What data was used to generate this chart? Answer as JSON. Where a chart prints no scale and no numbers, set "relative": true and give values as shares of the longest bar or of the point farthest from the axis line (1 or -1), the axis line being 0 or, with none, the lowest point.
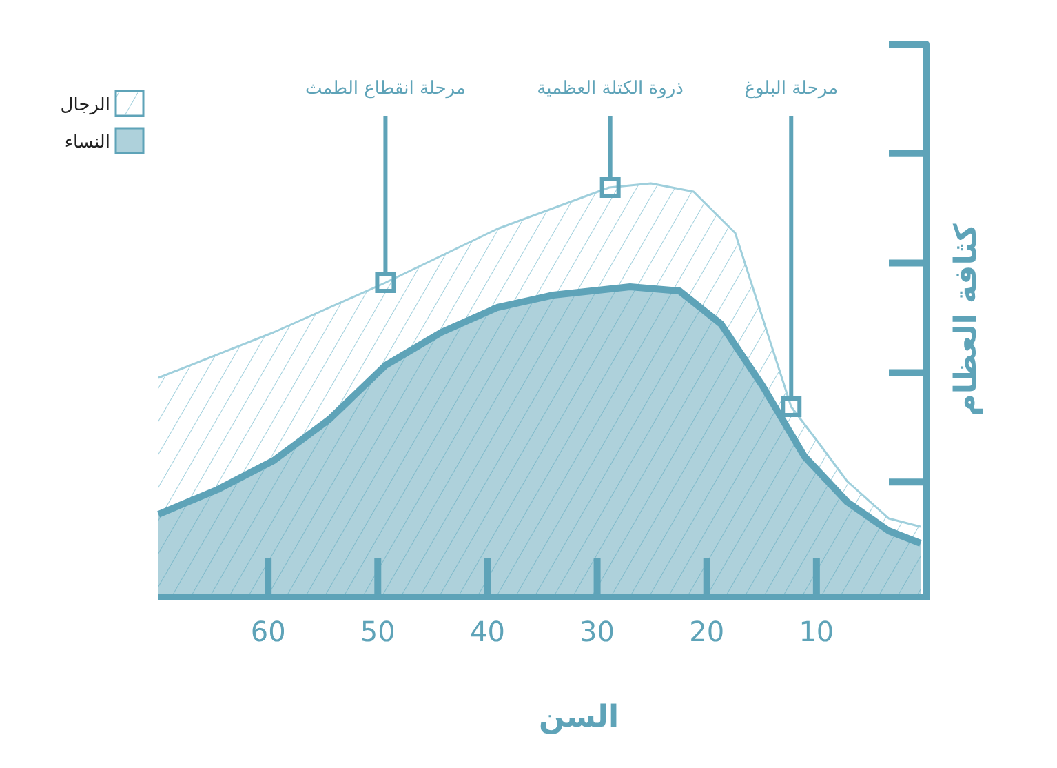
{
  "chart_data": {
    "type": "area",
    "relative": true,
    "xlabel": "السن",
    "ylabel": "كثافة العظام",
    "xlim": [
      70,
      0
    ],
    "xticks": [
      60,
      50,
      40,
      30,
      20,
      10
    ],
    "legend": "top left",
    "series": [
      {
        "name": "الرجال",
        "color": "#9fcfdc",
        "x": [
          70,
          59.5,
          49.3,
          39.1,
          28.9,
          25.1,
          21.2,
          17.4,
          12.3,
          10,
          7.2,
          3.4,
          0.5
        ],
        "values": [
          0.53,
          0.64,
          0.76,
          0.89,
          0.99,
          1.0,
          0.98,
          0.88,
          0.46,
          0.38,
          0.28,
          0.19,
          0.17
        ]
      },
      {
        "name": "النساء",
        "color": "#5ea3b8",
        "x": [
          70,
          64.6,
          59.5,
          54.4,
          49.3,
          44.2,
          39.1,
          34.0,
          27.0,
          22.5,
          18.7,
          14.9,
          11.1,
          7.2,
          3.4,
          0.5
        ],
        "values": [
          0.2,
          0.26,
          0.33,
          0.43,
          0.56,
          0.64,
          0.7,
          0.73,
          0.75,
          0.74,
          0.66,
          0.51,
          0.34,
          0.23,
          0.16,
          0.13
        ]
      }
    ],
    "annotations": [
      {
        "text": "مرحلة انقطاع الطمث",
        "x": 49.3,
        "y": 0.76
      },
      {
        "text": "ذروة الكتلة العظمية",
        "x": 28.8,
        "y": 0.99
      },
      {
        "text": "مرحلة البلوغ",
        "x": 12.3,
        "y": 0.46
      }
    ]
  }
}
